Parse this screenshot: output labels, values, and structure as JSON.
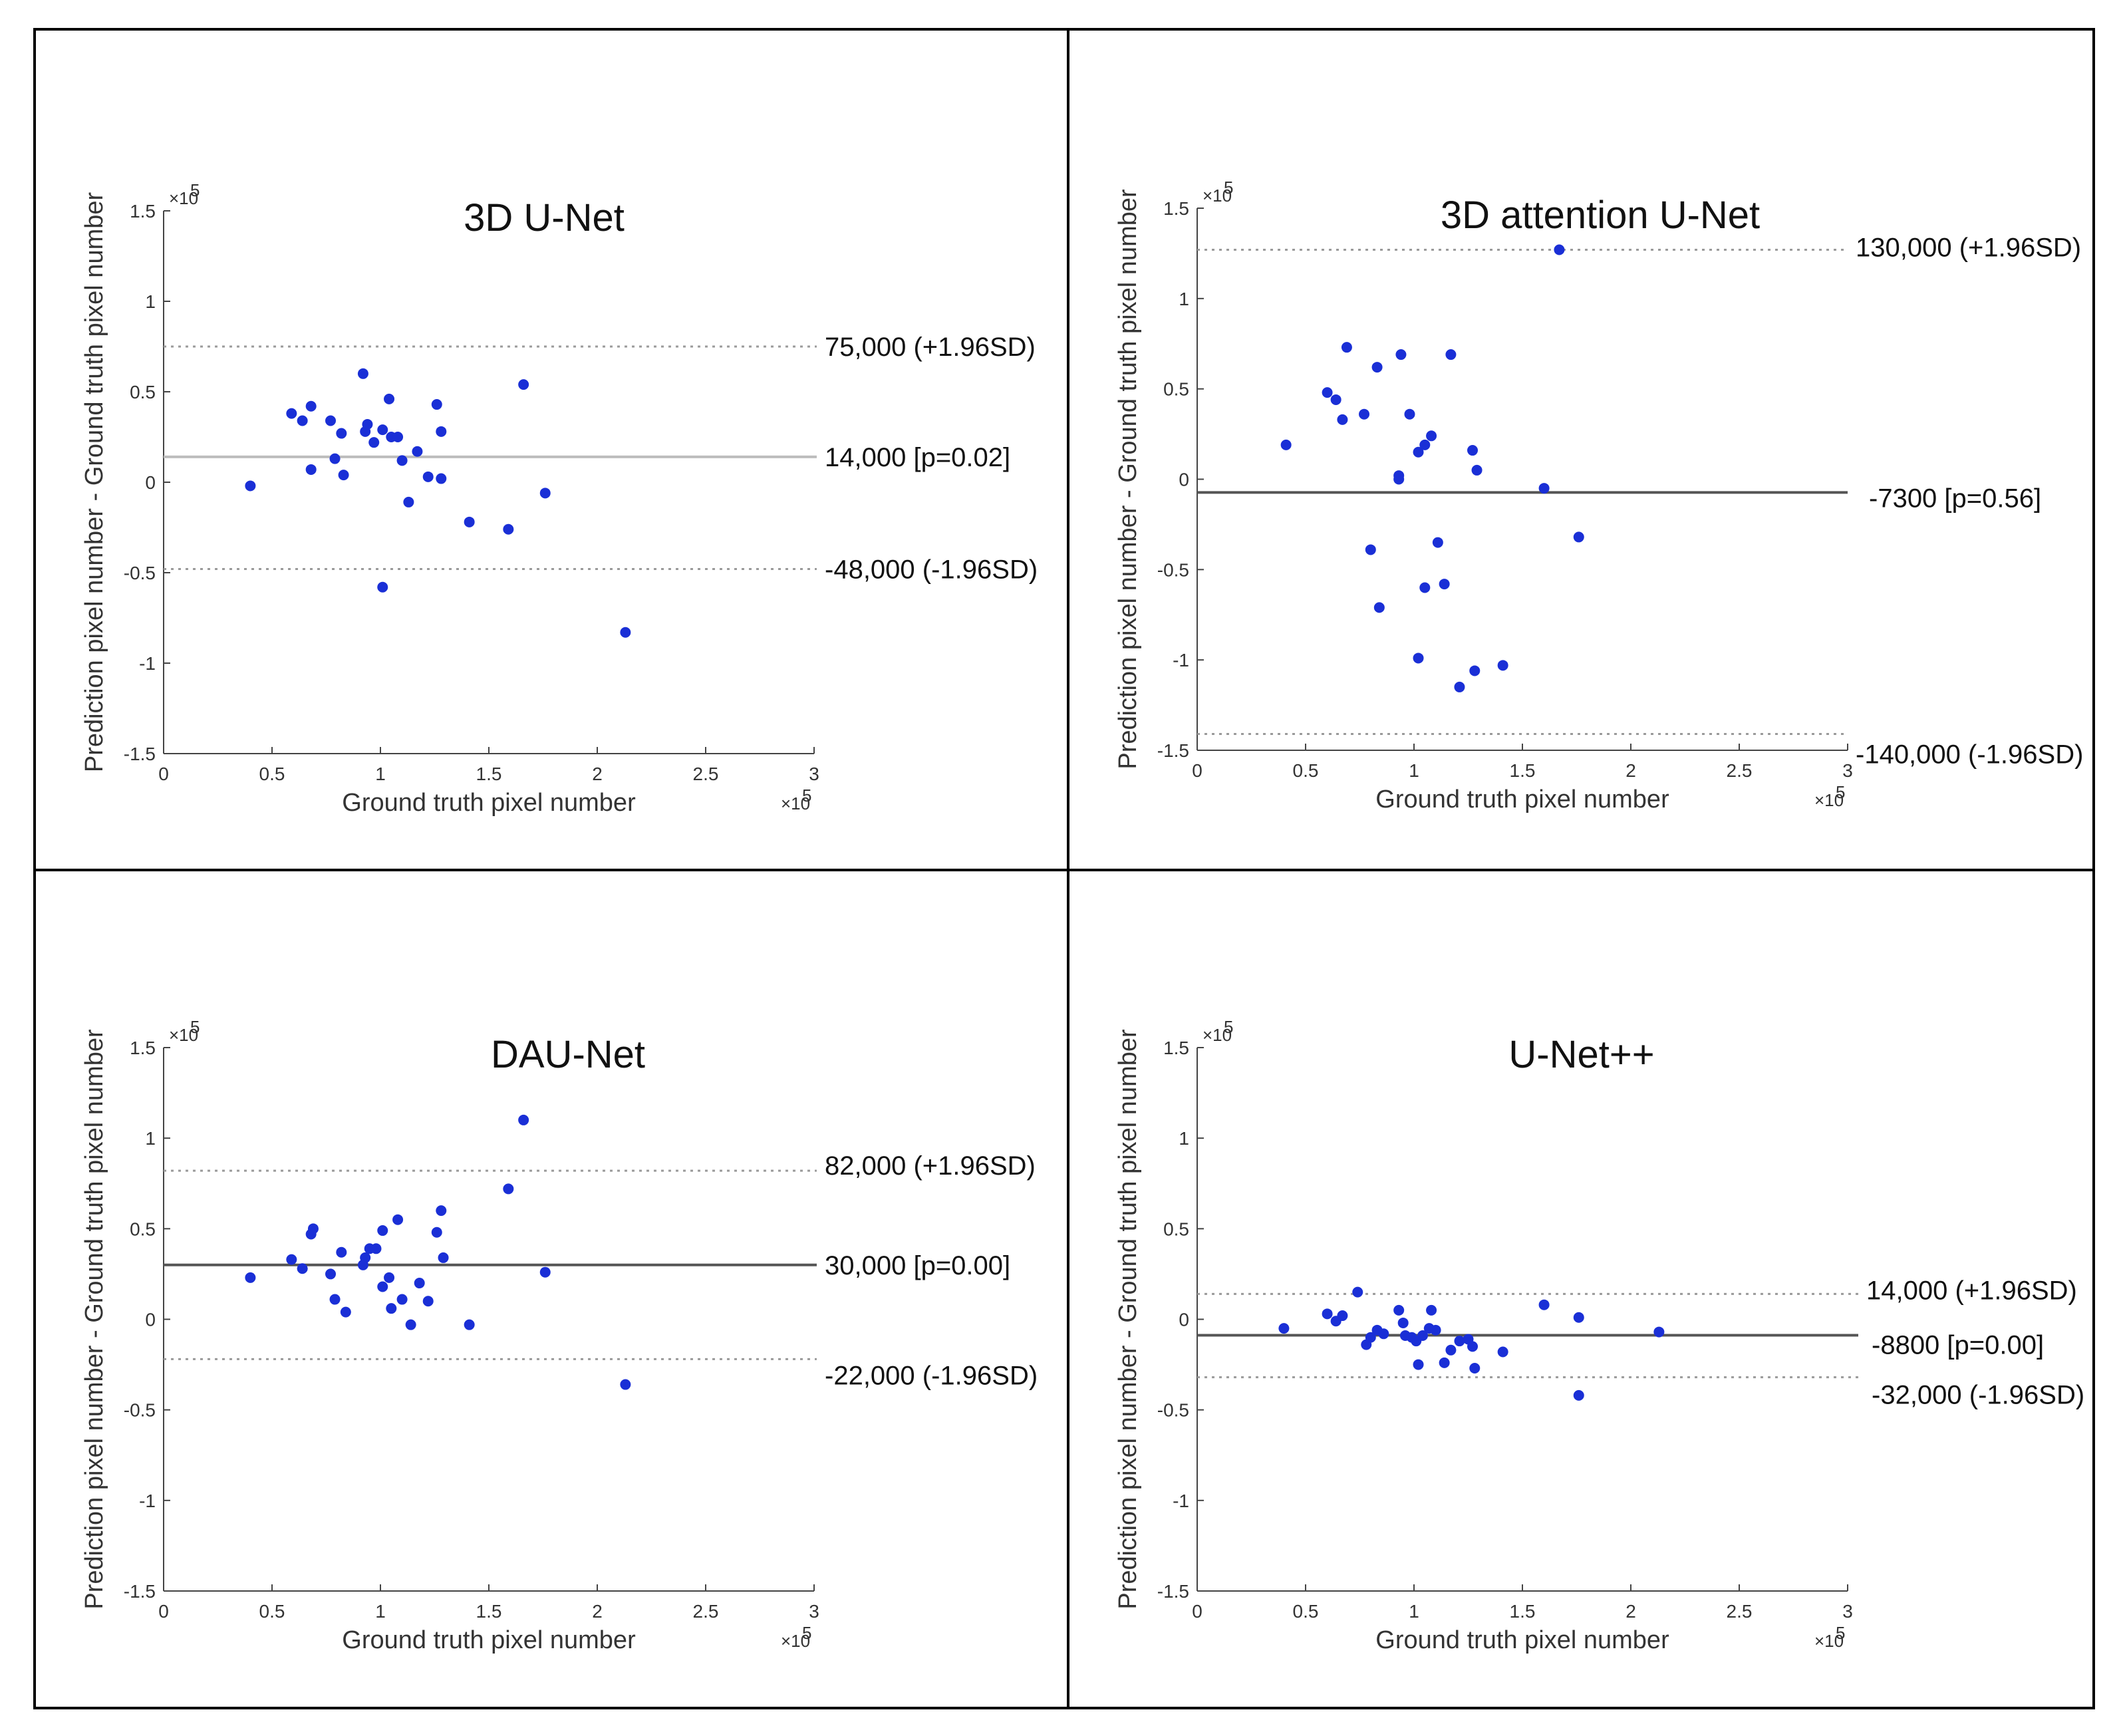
{
  "chart_data": [
    {
      "type": "scatter",
      "title": "3D U-Net",
      "xlabel": "Ground truth pixel number",
      "ylabel": "Prediction pixel number - Ground truth pixel number",
      "x_exponent": "×10",
      "y_exponent": "×10",
      "exponent_power": "5",
      "xlim": [
        0,
        3
      ],
      "ylim": [
        -1.5,
        1.5
      ],
      "x_ticks": [
        "0",
        "0.5",
        "1",
        "1.5",
        "2",
        "2.5",
        "3"
      ],
      "y_ticks": [
        "-1.5",
        "-1",
        "-0.5",
        "0",
        "0.5",
        "1",
        "1.5"
      ],
      "mean_line": {
        "value": 0.14,
        "label": "14,000 [p=0.02]",
        "color": "#bdbdbd"
      },
      "upper_loa": {
        "value": 0.75,
        "label": "75,000 (+1.96SD)"
      },
      "lower_loa": {
        "value": -0.48,
        "label": "-48,000 (-1.96SD)"
      },
      "points": [
        [
          0.4,
          -0.02
        ],
        [
          0.59,
          0.38
        ],
        [
          0.64,
          0.34
        ],
        [
          0.68,
          0.42
        ],
        [
          0.68,
          0.07
        ],
        [
          0.77,
          0.34
        ],
        [
          0.79,
          0.13
        ],
        [
          0.82,
          0.27
        ],
        [
          0.83,
          0.04
        ],
        [
          0.92,
          0.6
        ],
        [
          0.93,
          0.28
        ],
        [
          0.94,
          0.32
        ],
        [
          0.97,
          0.22
        ],
        [
          1.01,
          0.29
        ],
        [
          1.01,
          -0.58
        ],
        [
          1.04,
          0.46
        ],
        [
          1.05,
          0.25
        ],
        [
          1.08,
          0.25
        ],
        [
          1.1,
          0.12
        ],
        [
          1.13,
          -0.11
        ],
        [
          1.17,
          0.17
        ],
        [
          1.22,
          0.03
        ],
        [
          1.26,
          0.43
        ],
        [
          1.28,
          0.28
        ],
        [
          1.28,
          0.02
        ],
        [
          1.41,
          -0.22
        ],
        [
          1.59,
          -0.26
        ],
        [
          1.66,
          0.54
        ],
        [
          1.76,
          -0.06
        ],
        [
          2.13,
          -0.83
        ]
      ]
    },
    {
      "type": "scatter",
      "title": "3D attention U-Net",
      "xlabel": "Ground truth pixel number",
      "ylabel": "Prediction pixel number - Ground truth pixel number",
      "x_exponent": "×10",
      "y_exponent": "×10",
      "exponent_power": "5",
      "xlim": [
        0,
        3
      ],
      "ylim": [
        -1.5,
        1.5
      ],
      "x_ticks": [
        "0",
        "0.5",
        "1",
        "1.5",
        "2",
        "2.5",
        "3"
      ],
      "y_ticks": [
        "-1.5",
        "-1",
        "-0.5",
        "0",
        "0.5",
        "1",
        "1.5"
      ],
      "mean_line": {
        "value": -0.073,
        "label": "-7300 [p=0.56]",
        "color": "#555555"
      },
      "upper_loa": {
        "value": 1.27,
        "label": "130,000 (+1.96SD)"
      },
      "lower_loa": {
        "value": -1.41,
        "label": "-140,000 (-1.96SD)"
      },
      "points": [
        [
          0.41,
          0.19
        ],
        [
          0.6,
          0.48
        ],
        [
          0.64,
          0.44
        ],
        [
          0.67,
          0.33
        ],
        [
          0.69,
          0.73
        ],
        [
          0.77,
          0.36
        ],
        [
          0.8,
          -0.39
        ],
        [
          0.83,
          0.62
        ],
        [
          0.84,
          -0.71
        ],
        [
          0.93,
          0.02
        ],
        [
          0.93,
          0.0
        ],
        [
          0.94,
          0.69
        ],
        [
          0.98,
          0.36
        ],
        [
          1.02,
          0.15
        ],
        [
          1.02,
          -0.99
        ],
        [
          1.05,
          0.19
        ],
        [
          1.05,
          -0.6
        ],
        [
          1.08,
          0.24
        ],
        [
          1.11,
          -0.35
        ],
        [
          1.14,
          -0.58
        ],
        [
          1.17,
          0.69
        ],
        [
          1.21,
          -1.15
        ],
        [
          1.27,
          0.16
        ],
        [
          1.28,
          -1.06
        ],
        [
          1.29,
          0.05
        ],
        [
          1.41,
          -1.03
        ],
        [
          1.6,
          -0.05
        ],
        [
          1.67,
          1.27
        ],
        [
          1.76,
          -0.32
        ]
      ]
    },
    {
      "type": "scatter",
      "title": "DAU-Net",
      "xlabel": "Ground truth pixel number",
      "ylabel": "Prediction pixel number - Ground truth pixel number",
      "x_exponent": "×10",
      "y_exponent": "×10",
      "exponent_power": "5",
      "xlim": [
        0,
        3
      ],
      "ylim": [
        -1.5,
        1.5
      ],
      "x_ticks": [
        "0",
        "0.5",
        "1",
        "1.5",
        "2",
        "2.5",
        "3"
      ],
      "y_ticks": [
        "-1.5",
        "-1",
        "-0.5",
        "0",
        "0.5",
        "1",
        "1.5"
      ],
      "mean_line": {
        "value": 0.3,
        "label": "30,000 [p=0.00]",
        "color": "#555555"
      },
      "upper_loa": {
        "value": 0.82,
        "label": "82,000 (+1.96SD)"
      },
      "lower_loa": {
        "value": -0.22,
        "label": "-22,000 (-1.96SD)"
      },
      "points": [
        [
          0.4,
          0.23
        ],
        [
          0.59,
          0.33
        ],
        [
          0.64,
          0.28
        ],
        [
          0.68,
          0.47
        ],
        [
          0.69,
          0.5
        ],
        [
          0.77,
          0.25
        ],
        [
          0.79,
          0.11
        ],
        [
          0.82,
          0.37
        ],
        [
          0.84,
          0.04
        ],
        [
          0.92,
          0.3
        ],
        [
          0.93,
          0.34
        ],
        [
          0.95,
          0.39
        ],
        [
          0.98,
          0.39
        ],
        [
          1.01,
          0.49
        ],
        [
          1.01,
          0.18
        ],
        [
          1.04,
          0.23
        ],
        [
          1.05,
          0.06
        ],
        [
          1.08,
          0.55
        ],
        [
          1.1,
          0.11
        ],
        [
          1.14,
          -0.03
        ],
        [
          1.18,
          0.2
        ],
        [
          1.22,
          0.1
        ],
        [
          1.26,
          0.48
        ],
        [
          1.28,
          0.6
        ],
        [
          1.29,
          0.34
        ],
        [
          1.41,
          -0.03
        ],
        [
          1.59,
          0.72
        ],
        [
          1.66,
          1.1
        ],
        [
          1.76,
          0.26
        ],
        [
          2.13,
          -0.36
        ]
      ]
    },
    {
      "type": "scatter",
      "title": "U-Net++",
      "xlabel": "Ground truth pixel number",
      "ylabel": "Prediction pixel number - Ground truth pixel number",
      "x_exponent": "×10",
      "y_exponent": "×10",
      "exponent_power": "5",
      "xlim": [
        0,
        3
      ],
      "ylim": [
        -1.5,
        1.5
      ],
      "x_ticks": [
        "0",
        "0.5",
        "1",
        "1.5",
        "2",
        "2.5",
        "3"
      ],
      "y_ticks": [
        "-1.5",
        "-1",
        "-0.5",
        "0",
        "0.5",
        "1",
        "1.5"
      ],
      "mean_line": {
        "value": -0.088,
        "label": "-8800 [p=0.00]",
        "color": "#555555"
      },
      "upper_loa": {
        "value": 0.14,
        "label": "14,000 (+1.96SD)"
      },
      "lower_loa": {
        "value": -0.32,
        "label": "-32,000 (-1.96SD)"
      },
      "points": [
        [
          0.4,
          -0.05
        ],
        [
          0.6,
          0.03
        ],
        [
          0.64,
          -0.01
        ],
        [
          0.67,
          0.02
        ],
        [
          0.74,
          0.15
        ],
        [
          0.78,
          -0.14
        ],
        [
          0.8,
          -0.1
        ],
        [
          0.83,
          -0.06
        ],
        [
          0.86,
          -0.08
        ],
        [
          0.93,
          0.05
        ],
        [
          0.95,
          -0.02
        ],
        [
          0.96,
          -0.09
        ],
        [
          0.99,
          -0.1
        ],
        [
          1.01,
          -0.12
        ],
        [
          1.02,
          -0.25
        ],
        [
          1.04,
          -0.09
        ],
        [
          1.07,
          -0.05
        ],
        [
          1.08,
          0.05
        ],
        [
          1.1,
          -0.06
        ],
        [
          1.14,
          -0.24
        ],
        [
          1.17,
          -0.17
        ],
        [
          1.21,
          -0.12
        ],
        [
          1.25,
          -0.11
        ],
        [
          1.27,
          -0.15
        ],
        [
          1.28,
          -0.27
        ],
        [
          1.41,
          -0.18
        ],
        [
          1.6,
          0.08
        ],
        [
          1.76,
          0.01
        ],
        [
          1.76,
          -0.42
        ],
        [
          2.13,
          -0.07
        ]
      ]
    }
  ]
}
